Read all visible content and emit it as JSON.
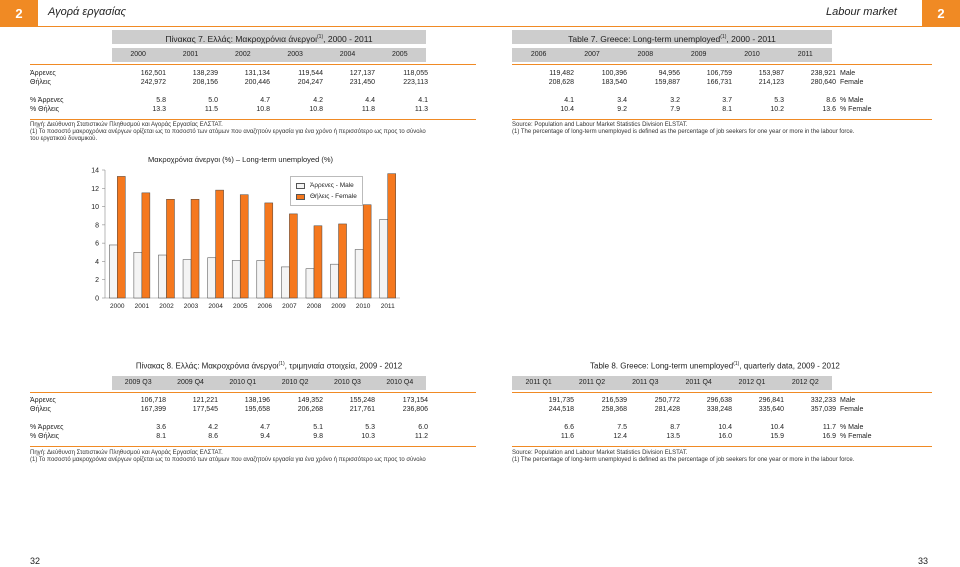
{
  "header": {
    "left_page_number": "2",
    "left_title": "Αγορά εργασίας",
    "right_title": "Labour market",
    "right_page_number": "2"
  },
  "colors": {
    "accent_orange": "#f08a24",
    "header_gray": "#cdcdcd",
    "bar_female": "#f5781e",
    "bar_male": "#f4f4f4"
  },
  "table7": {
    "title_gr": "Πίνακας 7. Ελλάς: Μακροχρόνια άνεργοι",
    "title_gr_sup": "(1)",
    "title_gr_tail": ", 2000 - 2011",
    "title_en": "Table 7. Greece: Long-term unemployed",
    "title_en_sup": "(1)",
    "title_en_tail": ", 2000 - 2011",
    "years_left": [
      "2000",
      "2001",
      "2002",
      "2003",
      "2004",
      "2005"
    ],
    "years_right": [
      "2006",
      "2007",
      "2008",
      "2009",
      "2010",
      "2011"
    ],
    "rows": [
      {
        "label_gr": "Άρρενες",
        "label_en": "Male",
        "left": [
          "162,501",
          "138,239",
          "131,134",
          "119,544",
          "127,137",
          "118,055"
        ],
        "right": [
          "119,482",
          "100,396",
          "94,956",
          "106,759",
          "153,987",
          "238,921"
        ]
      },
      {
        "label_gr": "Θήλεις",
        "label_en": "Female",
        "left": [
          "242,972",
          "208,156",
          "200,446",
          "204,247",
          "231,450",
          "223,113"
        ],
        "right": [
          "208,628",
          "183,540",
          "159,887",
          "166,731",
          "214,123",
          "280,640"
        ]
      },
      {
        "label_gr": "% Άρρενες",
        "label_en": "% Male",
        "left": [
          "5.8",
          "5.0",
          "4.7",
          "4.2",
          "4.4",
          "4.1"
        ],
        "right": [
          "4.1",
          "3.4",
          "3.2",
          "3.7",
          "5.3",
          "8.6"
        ]
      },
      {
        "label_gr": "% Θήλεις",
        "label_en": "% Female",
        "left": [
          "13.3",
          "11.5",
          "10.8",
          "10.8",
          "11.8",
          "11.3"
        ],
        "right": [
          "10.4",
          "9.2",
          "7.9",
          "8.1",
          "10.2",
          "13.6"
        ]
      }
    ],
    "source_gr": "Πηγή: Διεύθυνση Στατιστικών Πληθυσμού και Αγοράς Εργασίας ΕΛΣΤΑΤ.",
    "note_gr_1": "(1) Το ποσοστό μακροχρόνια ανέργων ορίζεται ως το ποσοστό των ατόμων που αναζητούν εργασία για ένα χρόνο ή περισσότερο ως προς το σύνολο",
    "note_gr_2": "του εργατικού δυναμικού.",
    "source_en": "Source: Population and Labour Market Statistics Division ELSTAT.",
    "note_en": "(1) The percentage of long-term unemployed is defined as the percentage of job seekers for one year or more in the labour force."
  },
  "chart_data": {
    "type": "bar",
    "title": "Μακροχρόνια άνεργοι (%) – Long-term unemployed (%)",
    "categories": [
      "2000",
      "2001",
      "2002",
      "2003",
      "2004",
      "2005",
      "2006",
      "2007",
      "2008",
      "2009",
      "2010",
      "2011"
    ],
    "series": [
      {
        "name": "Άρρενες - Male",
        "values": [
          5.8,
          5.0,
          4.7,
          4.2,
          4.4,
          4.1,
          4.1,
          3.4,
          3.2,
          3.7,
          5.3,
          8.6
        ]
      },
      {
        "name": "Θήλεις - Female",
        "values": [
          13.3,
          11.5,
          10.8,
          10.8,
          11.8,
          11.3,
          10.4,
          9.2,
          7.9,
          8.1,
          10.2,
          13.6
        ]
      }
    ],
    "ylim": [
      0,
      14
    ],
    "yticks": [
      "0",
      "2",
      "4",
      "6",
      "8",
      "10",
      "12",
      "14"
    ],
    "legend_placement": "top-center",
    "grid": false
  },
  "table8": {
    "title_gr": "Πίνακας 8. Ελλάς: Μακροχρόνια άνεργοι",
    "title_gr_sup": "(1)",
    "title_gr_tail": ", τριμηνιαία στοιχεία, 2009 - 2012",
    "title_en": "Table 8. Greece: Long-term unemployed",
    "title_en_sup": "(1)",
    "title_en_tail": ", quarterly data, 2009 - 2012",
    "periods_left": [
      "2009 Q3",
      "2009 Q4",
      "2010 Q1",
      "2010 Q2",
      "2010 Q3",
      "2010 Q4"
    ],
    "periods_right": [
      "2011 Q1",
      "2011 Q2",
      "2011 Q3",
      "2011 Q4",
      "2012 Q1",
      "2012 Q2"
    ],
    "rows": [
      {
        "label_gr": "Άρρενες",
        "label_en": "Male",
        "left": [
          "106,718",
          "121,221",
          "138,196",
          "149,352",
          "155,248",
          "173,154"
        ],
        "right": [
          "191,735",
          "216,539",
          "250,772",
          "296,638",
          "296,841",
          "332,233"
        ]
      },
      {
        "label_gr": "Θήλεις",
        "label_en": "Female",
        "left": [
          "167,399",
          "177,545",
          "195,658",
          "206,268",
          "217,761",
          "236,806"
        ],
        "right": [
          "244,518",
          "258,368",
          "281,428",
          "338,248",
          "335,640",
          "357,039"
        ]
      },
      {
        "label_gr": "% Άρρενες",
        "label_en": "% Male",
        "left": [
          "3.6",
          "4.2",
          "4.7",
          "5.1",
          "5.3",
          "6.0"
        ],
        "right": [
          "6.6",
          "7.5",
          "8.7",
          "10.4",
          "10.4",
          "11.7"
        ]
      },
      {
        "label_gr": "% Θήλεις",
        "label_en": "% Female",
        "left": [
          "8.1",
          "8.6",
          "9.4",
          "9.8",
          "10.3",
          "11.2"
        ],
        "right": [
          "11.6",
          "12.4",
          "13.5",
          "16.0",
          "15.9",
          "16.9"
        ]
      }
    ],
    "source_gr": "Πηγή: Διεύθυνση Στατιστικών Πληθυσμού και Αγοράς Εργασίας ΕΛΣΤΑΤ.",
    "note_gr": "(1) Το ποσοστό μακροχρόνια ανέργων ορίζεται ως το ποσοστό των ατόμων που αναζητούν εργασία για ένα χρόνο ή περισσότερο ως προς το σύνολο",
    "source_en": "Source: Population and Labour Market Statistics Division ELSTAT.",
    "note_en": "(1) The percentage of long-term unemployed is defined as the percentage of job seekers for one year or more in the labour force."
  },
  "footer": {
    "left_page": "32",
    "right_page": "33"
  }
}
